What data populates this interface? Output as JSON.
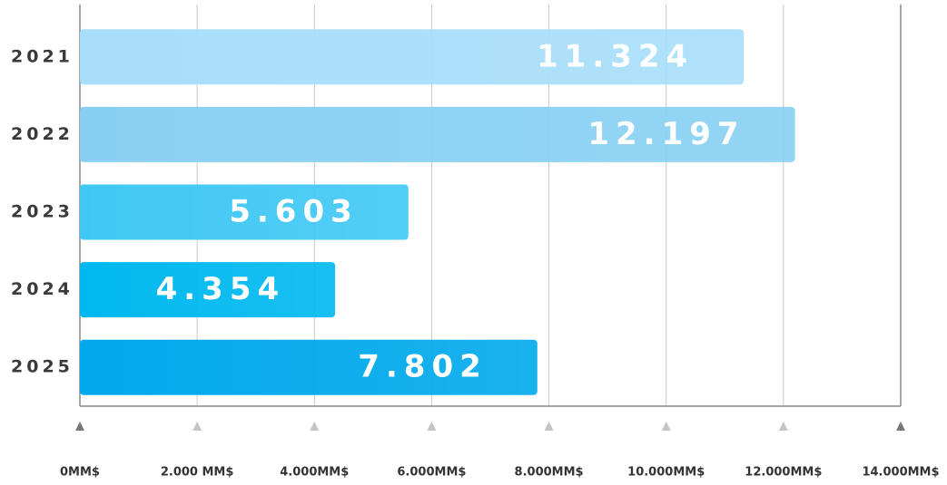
{
  "chart_data": {
    "type": "bar",
    "orientation": "horizontal",
    "categories": [
      "2021",
      "2022",
      "2023",
      "2024",
      "2025"
    ],
    "values": [
      11324,
      12197,
      5603,
      4354,
      7802
    ],
    "value_labels": [
      "11.324",
      "12.197",
      "5.603",
      "4.354",
      "7.802"
    ],
    "colors": [
      "#a8defa",
      "#88d0f3",
      "#40c8f4",
      "#00b8f0",
      "#00a9ec"
    ],
    "xlim": [
      0,
      14000
    ],
    "xticks": [
      {
        "value": 0,
        "label": "0MM$"
      },
      {
        "value": 2000,
        "label": "2.000 MM$"
      },
      {
        "value": 4000,
        "label": "4.000MM$"
      },
      {
        "value": 6000,
        "label": "6.000MM$"
      },
      {
        "value": 8000,
        "label": "8.000MM$"
      },
      {
        "value": 10000,
        "label": "10.000MM$"
      },
      {
        "value": 12000,
        "label": "12.000MM$"
      },
      {
        "value": 14000,
        "label": "14.000MM$"
      }
    ],
    "grid": true
  }
}
